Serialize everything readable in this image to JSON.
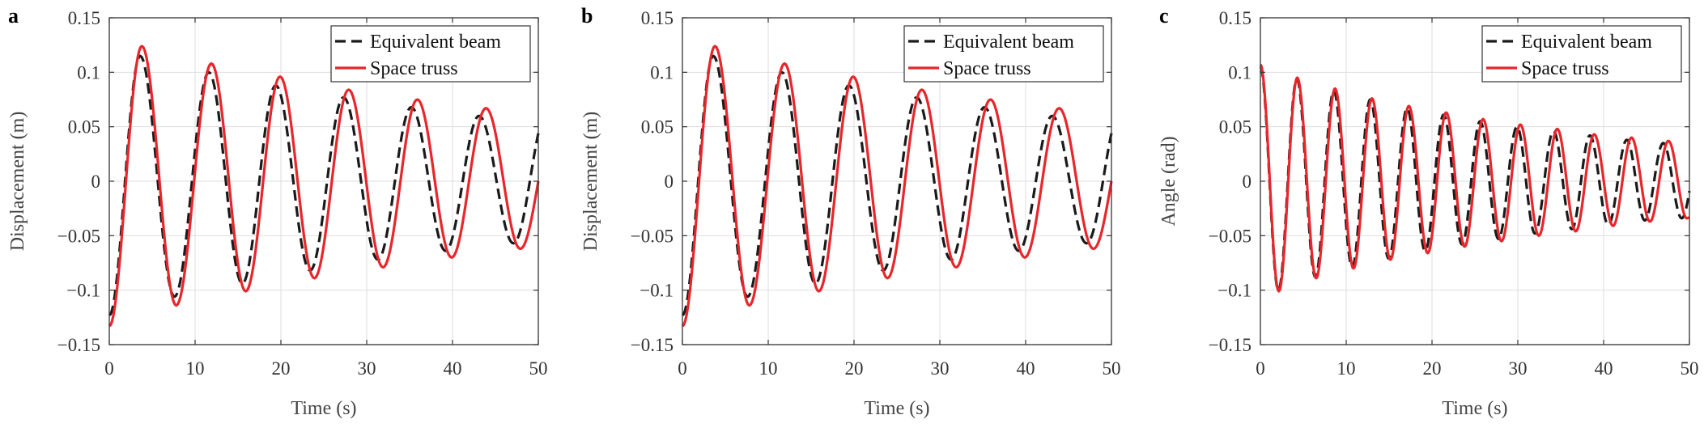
{
  "colors": {
    "equivalent_beam": "#1a1a1a",
    "space_truss": "#e8262b",
    "grid": "#dedede",
    "axis": "#333333"
  },
  "chart_data": [
    {
      "panel_label": "a",
      "type": "line",
      "xlabel": "Time (s)",
      "ylabel": "Displacement (m)",
      "xlim": [
        0,
        50
      ],
      "ylim": [
        -0.15,
        0.15
      ],
      "xticks": [
        0,
        10,
        20,
        30,
        40,
        50
      ],
      "xtick_labels": [
        "0",
        "10",
        "20",
        "30",
        "40",
        "50"
      ],
      "yticks": [
        -0.15,
        -0.1,
        -0.05,
        0,
        0.05,
        0.1,
        0.15
      ],
      "ytick_labels": [
        "−0.15",
        "−0.1",
        "−0.05",
        "0",
        "0.05",
        "0.1",
        "0.15"
      ],
      "grid": true,
      "legend_position": "top-right",
      "series": [
        {
          "name": "Equivalent beam",
          "style": "dashed",
          "color": "#1a1a1a",
          "points": [
            [
              0,
              -0.123
            ],
            [
              3.6,
              0.115
            ],
            [
              7.6,
              -0.106
            ],
            [
              11.6,
              0.1
            ],
            [
              15.5,
              -0.094
            ],
            [
              19.4,
              0.088
            ],
            [
              23.4,
              -0.082
            ],
            [
              27.3,
              0.077
            ],
            [
              31.3,
              -0.072
            ],
            [
              35.2,
              0.068
            ],
            [
              39.2,
              -0.064
            ],
            [
              43.1,
              0.06
            ],
            [
              47.1,
              -0.057
            ],
            [
              50,
              0.044
            ]
          ]
        },
        {
          "name": "Space truss",
          "style": "solid",
          "color": "#e8262b",
          "points": [
            [
              0,
              -0.133
            ],
            [
              3.8,
              0.124
            ],
            [
              7.8,
              -0.114
            ],
            [
              11.9,
              0.108
            ],
            [
              15.9,
              -0.101
            ],
            [
              19.9,
              0.096
            ],
            [
              23.9,
              -0.089
            ],
            [
              27.9,
              0.084
            ],
            [
              31.9,
              -0.079
            ],
            [
              35.9,
              0.075
            ],
            [
              39.9,
              -0.07
            ],
            [
              43.9,
              0.067
            ],
            [
              47.9,
              -0.062
            ],
            [
              50,
              0.0
            ]
          ]
        }
      ]
    },
    {
      "panel_label": "b",
      "type": "line",
      "xlabel": "Time (s)",
      "ylabel": "Displacement (m)",
      "xlim": [
        0,
        50
      ],
      "ylim": [
        -0.15,
        0.15
      ],
      "xticks": [
        0,
        10,
        20,
        30,
        40,
        50
      ],
      "xtick_labels": [
        "0",
        "10",
        "20",
        "30",
        "40",
        "50"
      ],
      "yticks": [
        -0.15,
        -0.1,
        -0.05,
        0,
        0.05,
        0.1,
        0.15
      ],
      "ytick_labels": [
        "−0.15",
        "−0.1",
        "−0.05",
        "0",
        "0.05",
        "0.1",
        "0.15"
      ],
      "grid": true,
      "legend_position": "top-right",
      "series": [
        {
          "name": "Equivalent beam",
          "style": "dashed",
          "color": "#1a1a1a",
          "points": [
            [
              0,
              -0.123
            ],
            [
              3.6,
              0.115
            ],
            [
              7.6,
              -0.106
            ],
            [
              11.6,
              0.1
            ],
            [
              15.5,
              -0.094
            ],
            [
              19.4,
              0.088
            ],
            [
              23.4,
              -0.082
            ],
            [
              27.3,
              0.077
            ],
            [
              31.3,
              -0.072
            ],
            [
              35.2,
              0.068
            ],
            [
              39.2,
              -0.064
            ],
            [
              43.1,
              0.06
            ],
            [
              47.1,
              -0.057
            ],
            [
              50,
              0.044
            ]
          ]
        },
        {
          "name": "Space truss",
          "style": "solid",
          "color": "#e8262b",
          "points": [
            [
              0,
              -0.133
            ],
            [
              3.8,
              0.124
            ],
            [
              7.8,
              -0.114
            ],
            [
              11.9,
              0.108
            ],
            [
              15.9,
              -0.101
            ],
            [
              19.9,
              0.096
            ],
            [
              23.9,
              -0.089
            ],
            [
              27.9,
              0.084
            ],
            [
              31.9,
              -0.079
            ],
            [
              35.9,
              0.075
            ],
            [
              39.9,
              -0.07
            ],
            [
              43.9,
              0.067
            ],
            [
              47.9,
              -0.062
            ],
            [
              50,
              0.0
            ]
          ]
        }
      ]
    },
    {
      "panel_label": "c",
      "type": "line",
      "xlabel": "Time (s)",
      "ylabel": "Angle (rad)",
      "xlim": [
        0,
        50
      ],
      "ylim": [
        -0.15,
        0.15
      ],
      "xticks": [
        0,
        10,
        20,
        30,
        40,
        50
      ],
      "xtick_labels": [
        "0",
        "10",
        "20",
        "30",
        "40",
        "50"
      ],
      "yticks": [
        -0.15,
        -0.1,
        -0.05,
        0,
        0.05,
        0.1,
        0.15
      ],
      "ytick_labels": [
        "−0.15",
        "−0.1",
        "−0.05",
        "0",
        "0.05",
        "0.1",
        "0.15"
      ],
      "grid": true,
      "legend_position": "top-right",
      "series": [
        {
          "name": "Equivalent beam",
          "style": "dashed",
          "color": "#1a1a1a",
          "points": [
            [
              0,
              0.105
            ],
            [
              2.1,
              -0.1
            ],
            [
              4.25,
              0.094
            ],
            [
              6.4,
              -0.088
            ],
            [
              8.55,
              0.083
            ],
            [
              10.7,
              -0.079
            ],
            [
              12.8,
              0.075
            ],
            [
              14.95,
              -0.071
            ],
            [
              17.1,
              0.067
            ],
            [
              19.2,
              -0.064
            ],
            [
              21.35,
              0.061
            ],
            [
              23.5,
              -0.058
            ],
            [
              25.6,
              0.055
            ],
            [
              27.75,
              -0.053
            ],
            [
              29.9,
              0.05
            ],
            [
              32.0,
              -0.048
            ],
            [
              34.15,
              0.046
            ],
            [
              36.3,
              -0.044
            ],
            [
              38.4,
              0.042
            ],
            [
              40.55,
              -0.04
            ],
            [
              42.7,
              0.038
            ],
            [
              44.8,
              -0.036
            ],
            [
              46.95,
              0.035
            ],
            [
              49.1,
              -0.034
            ],
            [
              50,
              -0.009
            ]
          ]
        },
        {
          "name": "Space truss",
          "style": "solid",
          "color": "#e8262b",
          "points": [
            [
              0,
              0.107
            ],
            [
              2.15,
              -0.101
            ],
            [
              4.3,
              0.095
            ],
            [
              6.5,
              -0.089
            ],
            [
              8.7,
              0.085
            ],
            [
              10.85,
              -0.08
            ],
            [
              13.0,
              0.076
            ],
            [
              15.15,
              -0.072
            ],
            [
              17.3,
              0.069
            ],
            [
              19.5,
              -0.066
            ],
            [
              21.65,
              0.063
            ],
            [
              23.8,
              -0.06
            ],
            [
              25.95,
              0.057
            ],
            [
              28.1,
              -0.055
            ],
            [
              30.3,
              0.052
            ],
            [
              32.45,
              -0.05
            ],
            [
              34.6,
              0.048
            ],
            [
              36.75,
              -0.046
            ],
            [
              38.9,
              0.043
            ],
            [
              41.1,
              -0.041
            ],
            [
              43.25,
              0.04
            ],
            [
              45.4,
              -0.037
            ],
            [
              47.55,
              0.037
            ],
            [
              49.7,
              -0.034
            ],
            [
              50,
              -0.033
            ]
          ]
        }
      ]
    }
  ]
}
